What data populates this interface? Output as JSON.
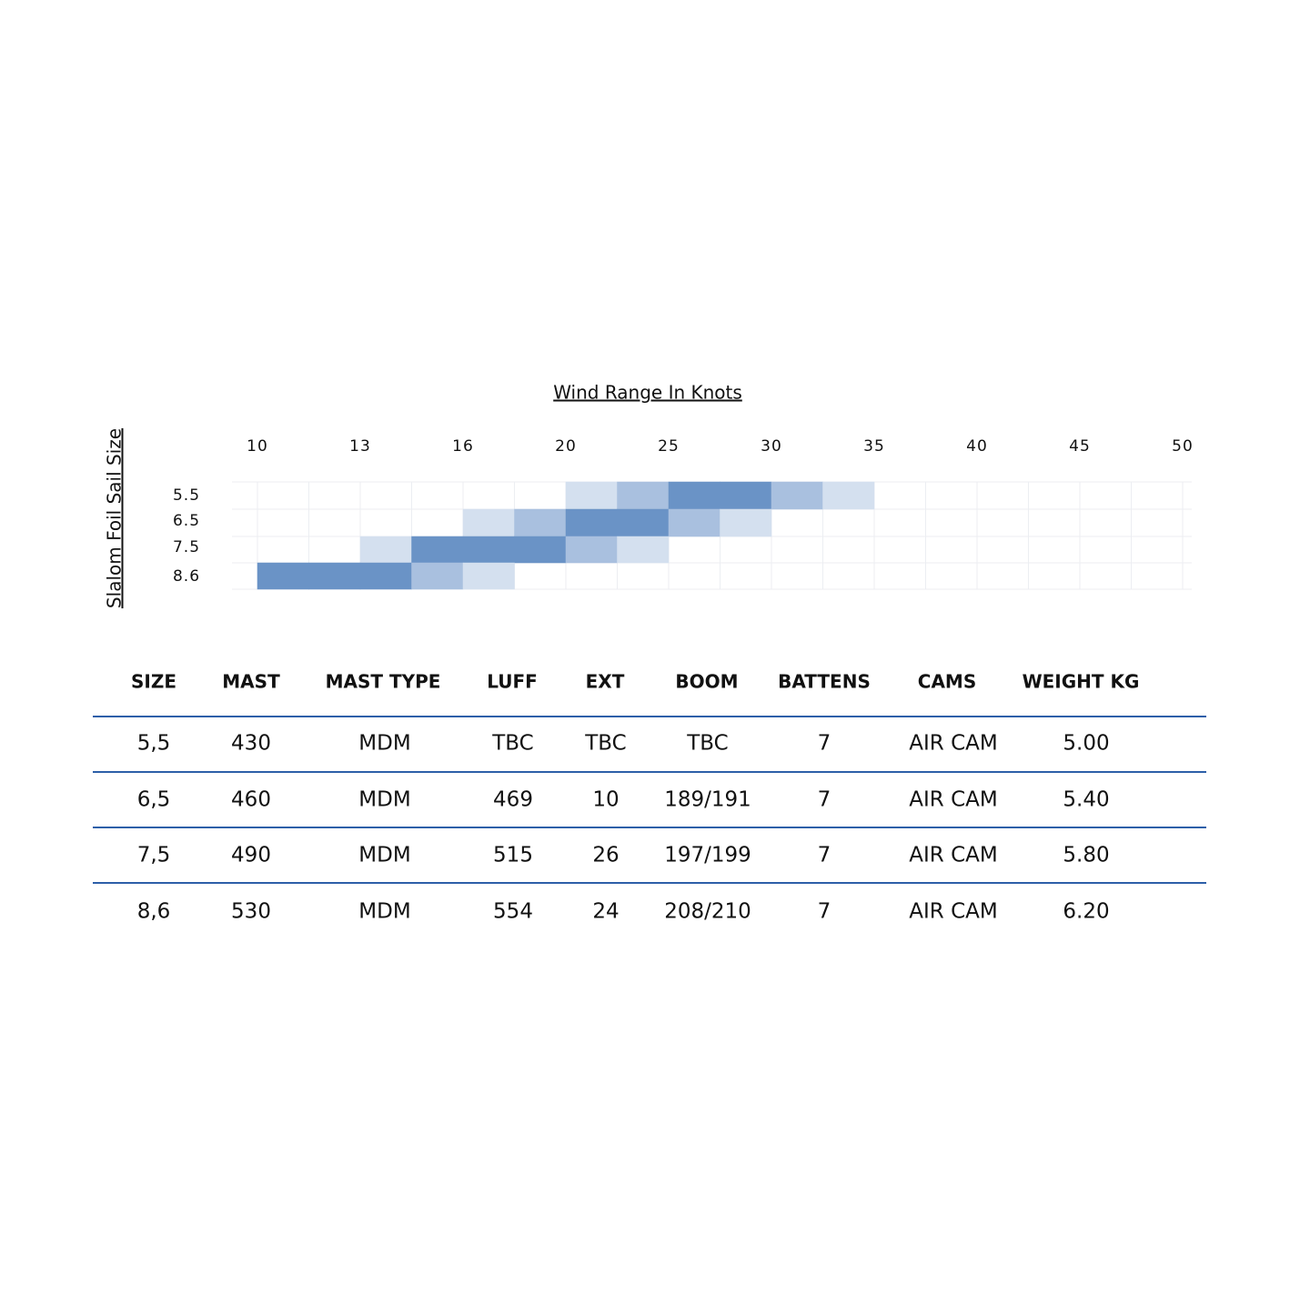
{
  "wind_chart": {
    "title": "Wind Range In Knots",
    "y_label": "Slalom Foil Sail Size",
    "wind_labels": [
      10,
      13,
      16,
      20,
      25,
      30,
      35,
      40,
      45,
      50
    ],
    "rows": [
      {
        "size": "5.5",
        "cells": [
          null,
          null,
          null,
          null,
          null,
          null,
          "#d4e0ef",
          "#a9c0df",
          "#6a93c6",
          "#6a93c6",
          "#a9c0df",
          "#d4e0ef",
          null,
          null,
          null,
          null,
          null,
          null
        ]
      },
      {
        "size": "6.5",
        "cells": [
          null,
          null,
          null,
          null,
          "#d4e0ef",
          "#a9c0df",
          "#6a93c6",
          "#6a93c6",
          "#a9c0df",
          "#d4e0ef",
          null,
          null,
          null,
          null,
          null,
          null,
          null,
          null
        ]
      },
      {
        "size": "7.5",
        "cells": [
          null,
          null,
          "#d4e0ef",
          "#6a93c6",
          "#6a93c6",
          "#6a93c6",
          "#a9c0df",
          "#d4e0ef",
          null,
          null,
          null,
          null,
          null,
          null,
          null,
          null,
          null,
          null
        ]
      },
      {
        "size": "8.6",
        "cells": [
          "#6a93c6",
          "#6a93c6",
          "#6a93c6",
          "#a9c0df",
          "#d4e0ef",
          null,
          null,
          null,
          null,
          null,
          null,
          null,
          null,
          null,
          null,
          null,
          null,
          null
        ]
      }
    ]
  },
  "table": {
    "header": [
      "SIZE",
      "MAST",
      "MAST TYPE",
      "LUFF",
      "EXT",
      "BOOM",
      "BATTENS",
      "CAMS",
      "WEIGHT KG"
    ],
    "rows": [
      [
        "5,5",
        "430",
        "MDM",
        "TBC",
        "TBC",
        "TBC",
        "7",
        "AIR CAM",
        "5.00"
      ],
      [
        "6,5",
        "460",
        "MDM",
        "469",
        "10",
        "189/191",
        "7",
        "AIR CAM",
        "5.40"
      ],
      [
        "7,5",
        "490",
        "MDM",
        "515",
        "26",
        "197/199",
        "7",
        "AIR CAM",
        "5.80"
      ],
      [
        "8,6",
        "530",
        "MDM",
        "554",
        "24",
        "208/210",
        "7",
        "AIR CAM",
        "6.20"
      ]
    ]
  }
}
